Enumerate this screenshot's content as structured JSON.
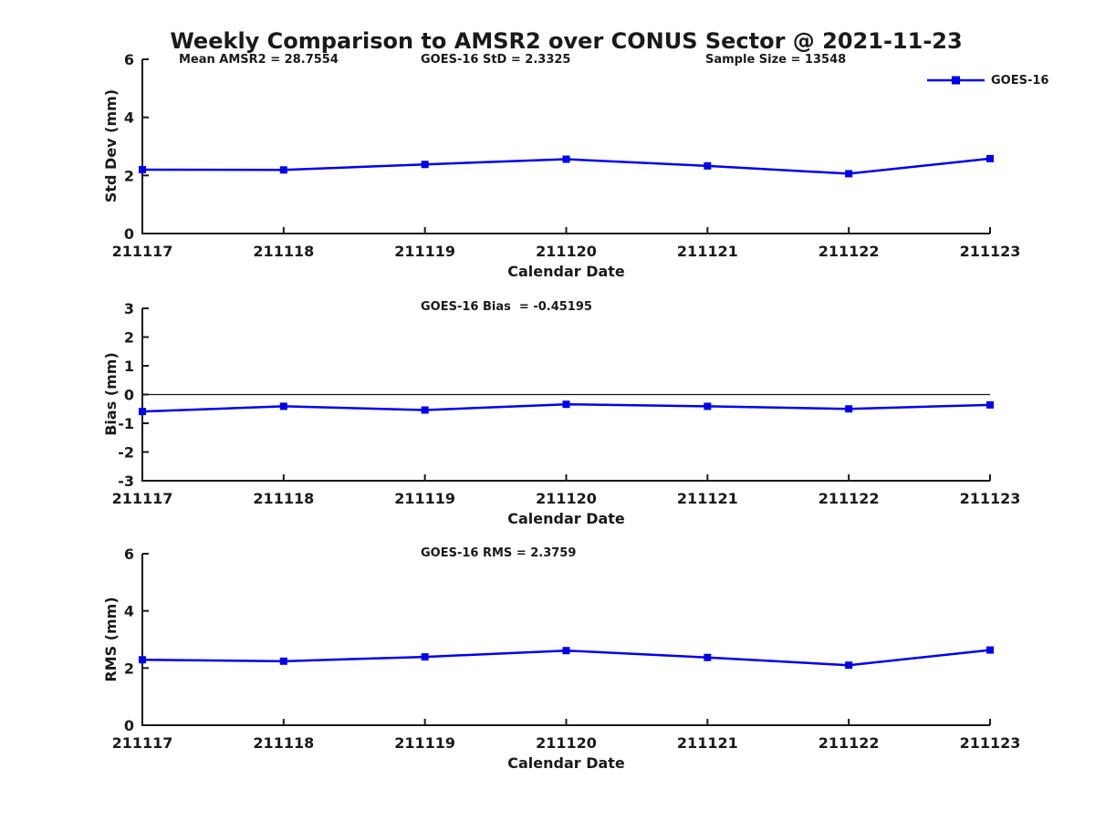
{
  "title": "Weekly Comparison to AMSR2 over CONUS Sector @ 2021-11-23",
  "colors": {
    "series_blue": "#0000EE",
    "axis_black": "#1a1a1a"
  },
  "legend": {
    "label": "GOES-16",
    "position": "top-right"
  },
  "chart_data": [
    {
      "type": "line",
      "name": "std-dev-panel",
      "annotations": [
        "Mean AMSR2 = 28.7554",
        "GOES-16 StD = 2.3325",
        "Sample Size = 13548"
      ],
      "ylabel": "Std Dev (mm)",
      "xlabel": "Calendar Date",
      "categories": [
        "211117",
        "211118",
        "211119",
        "211120",
        "211121",
        "211122",
        "211123"
      ],
      "series": [
        {
          "name": "GOES-16",
          "values": [
            2.2,
            2.19,
            2.38,
            2.56,
            2.33,
            2.06,
            2.58
          ]
        }
      ],
      "ylim": [
        0,
        6
      ],
      "yticks": [
        0,
        2,
        4,
        6
      ],
      "zero_line": false,
      "grid": false,
      "marker": "filled-square"
    },
    {
      "type": "line",
      "name": "bias-panel",
      "annotations": [
        "GOES-16 Bias  = -0.45195"
      ],
      "ylabel": "Bias (mm)",
      "xlabel": "Calendar Date",
      "categories": [
        "211117",
        "211118",
        "211119",
        "211120",
        "211121",
        "211122",
        "211123"
      ],
      "series": [
        {
          "name": "GOES-16",
          "values": [
            -0.59,
            -0.41,
            -0.54,
            -0.34,
            -0.41,
            -0.5,
            -0.36
          ]
        }
      ],
      "ylim": [
        -3,
        3
      ],
      "yticks": [
        -3,
        -2,
        -1,
        0,
        1,
        2,
        3
      ],
      "zero_line": true,
      "grid": false,
      "marker": "filled-square"
    },
    {
      "type": "line",
      "name": "rms-panel",
      "annotations": [
        "GOES-16 RMS = 2.3759"
      ],
      "ylabel": "RMS (mm)",
      "xlabel": "Calendar Date",
      "categories": [
        "211117",
        "211118",
        "211119",
        "211120",
        "211121",
        "211122",
        "211123"
      ],
      "series": [
        {
          "name": "GOES-16",
          "values": [
            2.29,
            2.24,
            2.39,
            2.61,
            2.37,
            2.1,
            2.63
          ]
        }
      ],
      "ylim": [
        0,
        6
      ],
      "yticks": [
        0,
        2,
        4,
        6
      ],
      "zero_line": false,
      "grid": false,
      "marker": "filled-square"
    }
  ]
}
